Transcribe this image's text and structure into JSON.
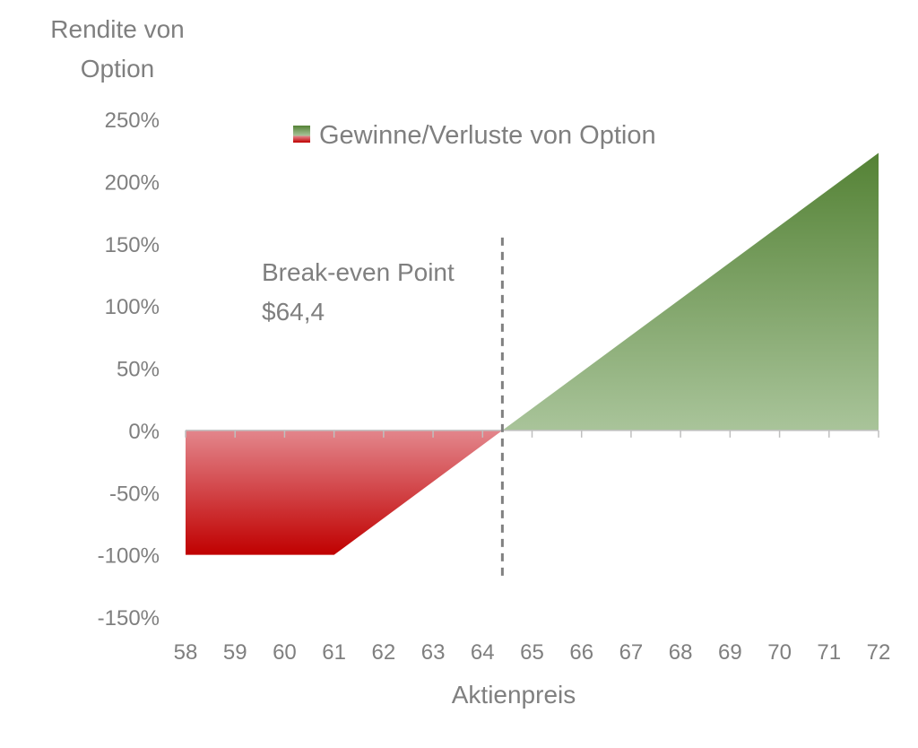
{
  "chart_data": {
    "type": "area",
    "ylabel": "Rendite von Option",
    "xlabel": "Aktienpreis",
    "legend": {
      "label": "Gewinne/Verluste von Option",
      "placement": "top-center"
    },
    "annotation": {
      "line1": "Break-even Point",
      "line2": "$64,4",
      "x": 64.4
    },
    "xlim": [
      58,
      72
    ],
    "ylim": [
      -150,
      250
    ],
    "x_ticks": [
      58,
      59,
      60,
      61,
      62,
      63,
      64,
      65,
      66,
      67,
      68,
      69,
      70,
      71,
      72
    ],
    "y_ticks": [
      250,
      200,
      150,
      100,
      50,
      0,
      -50,
      -100,
      -150
    ],
    "y_tick_labels": [
      "250%",
      "200%",
      "150%",
      "100%",
      "50%",
      "0%",
      "-50%",
      "-100%",
      "-150%"
    ],
    "series": [
      {
        "x": [
          58,
          61,
          64.4,
          72
        ],
        "y": [
          -100,
          -100,
          0,
          223
        ],
        "unit": "%"
      }
    ],
    "colors": {
      "gain_light": "#a9c49a",
      "gain_dark": "#548235",
      "loss_light": "#e3868c",
      "loss_dark": "#c00000",
      "axis": "#bfbfbf",
      "text": "#7f7f7f",
      "break_even_line": "#808080"
    }
  }
}
